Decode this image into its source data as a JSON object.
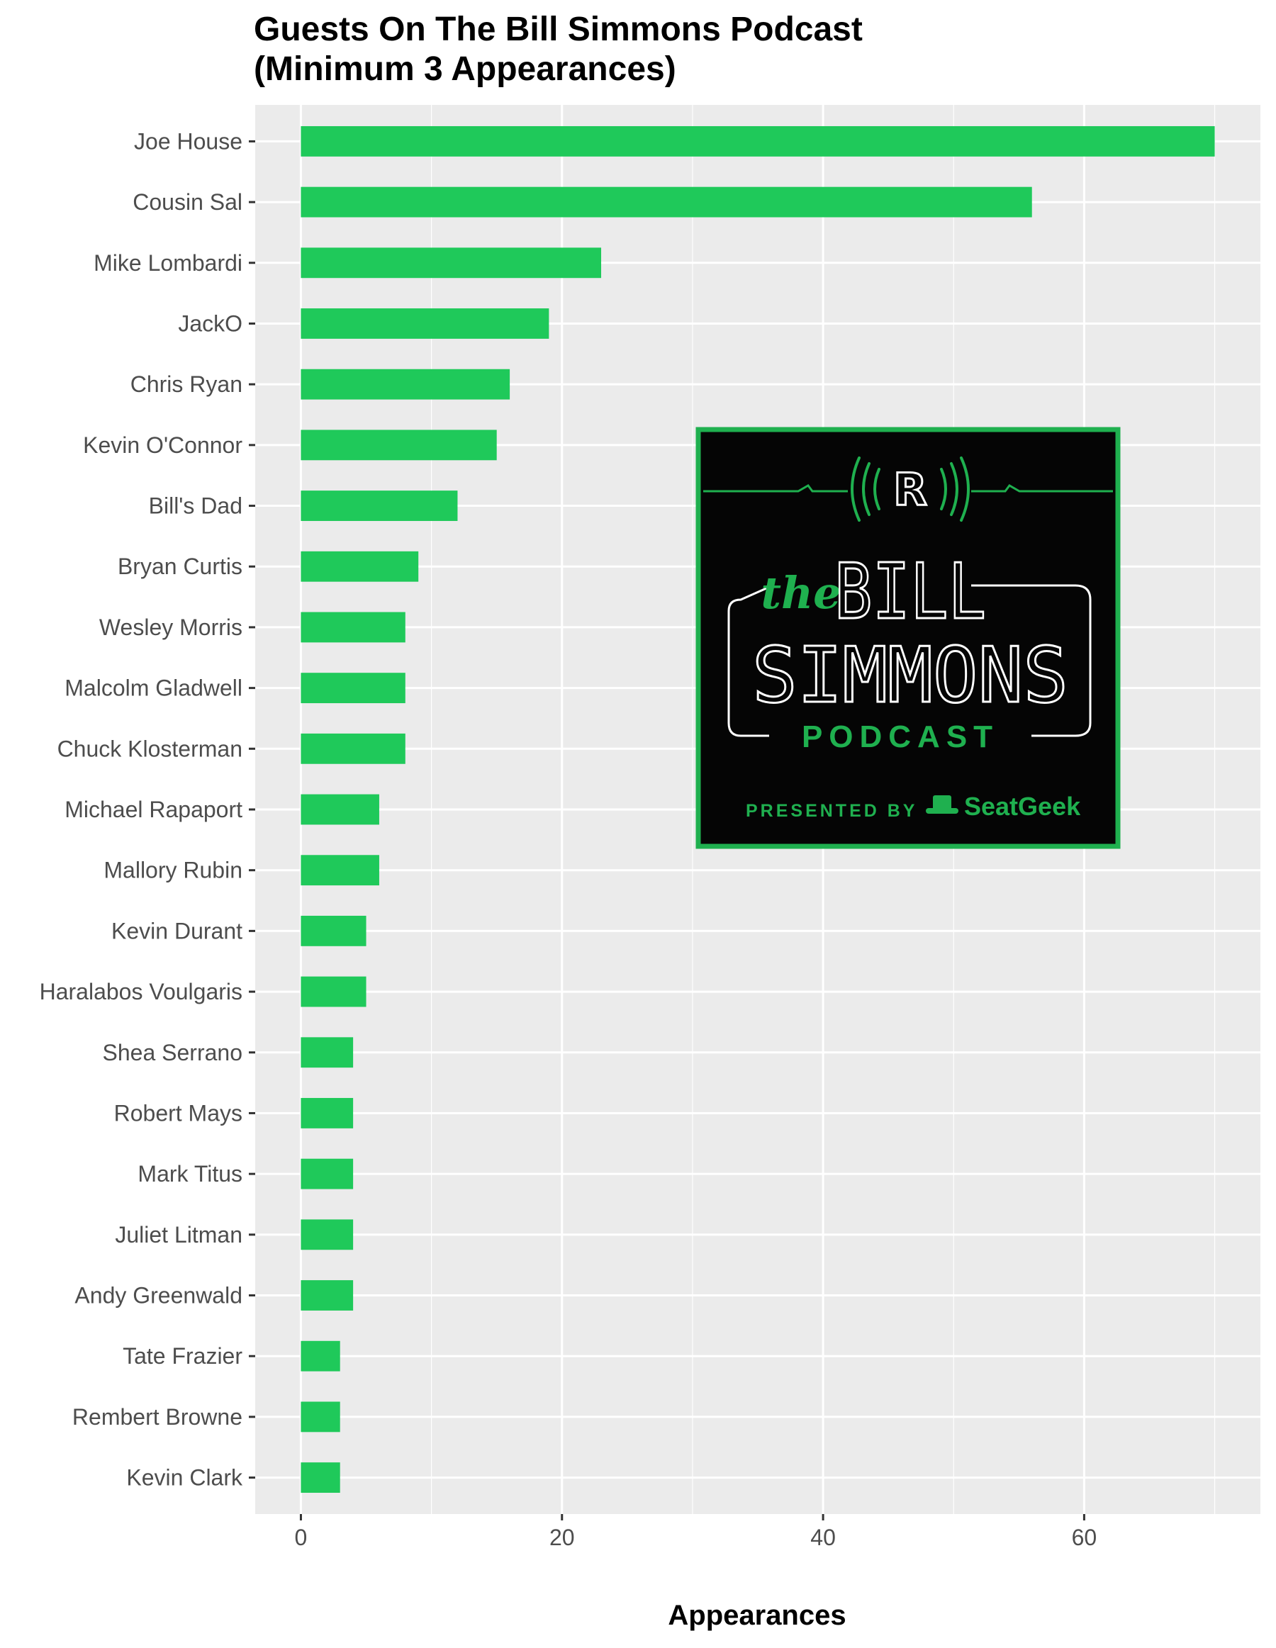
{
  "chart_data": {
    "type": "bar",
    "orientation": "horizontal",
    "title": "Guests On The Bill Simmons Podcast",
    "subtitle": "(Minimum 3 Appearances)",
    "xlabel": "Appearances",
    "ylabel": "",
    "xlim": [
      -3.5,
      73.5
    ],
    "xticks": [
      0,
      20,
      40,
      60
    ],
    "xtick_labels": [
      "0",
      "20",
      "40",
      "60"
    ],
    "grid": true,
    "bar_color": "#1fc95a",
    "panel_background": "#ebebeb",
    "categories": [
      "Joe House",
      "Cousin Sal",
      "Mike Lombardi",
      "JackO",
      "Chris Ryan",
      "Kevin O'Connor",
      "Bill's Dad",
      "Bryan Curtis",
      "Wesley Morris",
      "Malcolm Gladwell",
      "Chuck Klosterman",
      "Michael Rapaport",
      "Mallory Rubin",
      "Kevin Durant",
      "Haralabos Voulgaris",
      "Shea Serrano",
      "Robert Mays",
      "Mark Titus",
      "Juliet Litman",
      "Andy Greenwald",
      "Tate Frazier",
      "Rembert Browne",
      "Kevin Clark"
    ],
    "values": [
      70,
      56,
      23,
      19,
      16,
      15,
      12,
      9,
      8,
      8,
      8,
      6,
      6,
      5,
      5,
      4,
      4,
      4,
      4,
      4,
      3,
      3,
      3
    ]
  },
  "logo": {
    "network_mark": "R",
    "the": "the",
    "line1": "BILL",
    "line2": "SIMMONS",
    "line3": "PODCAST",
    "presented_by": "PRESENTED BY",
    "sponsor": "SeatGeek",
    "accent_color": "#1fb04f",
    "background_color": "#050505"
  }
}
